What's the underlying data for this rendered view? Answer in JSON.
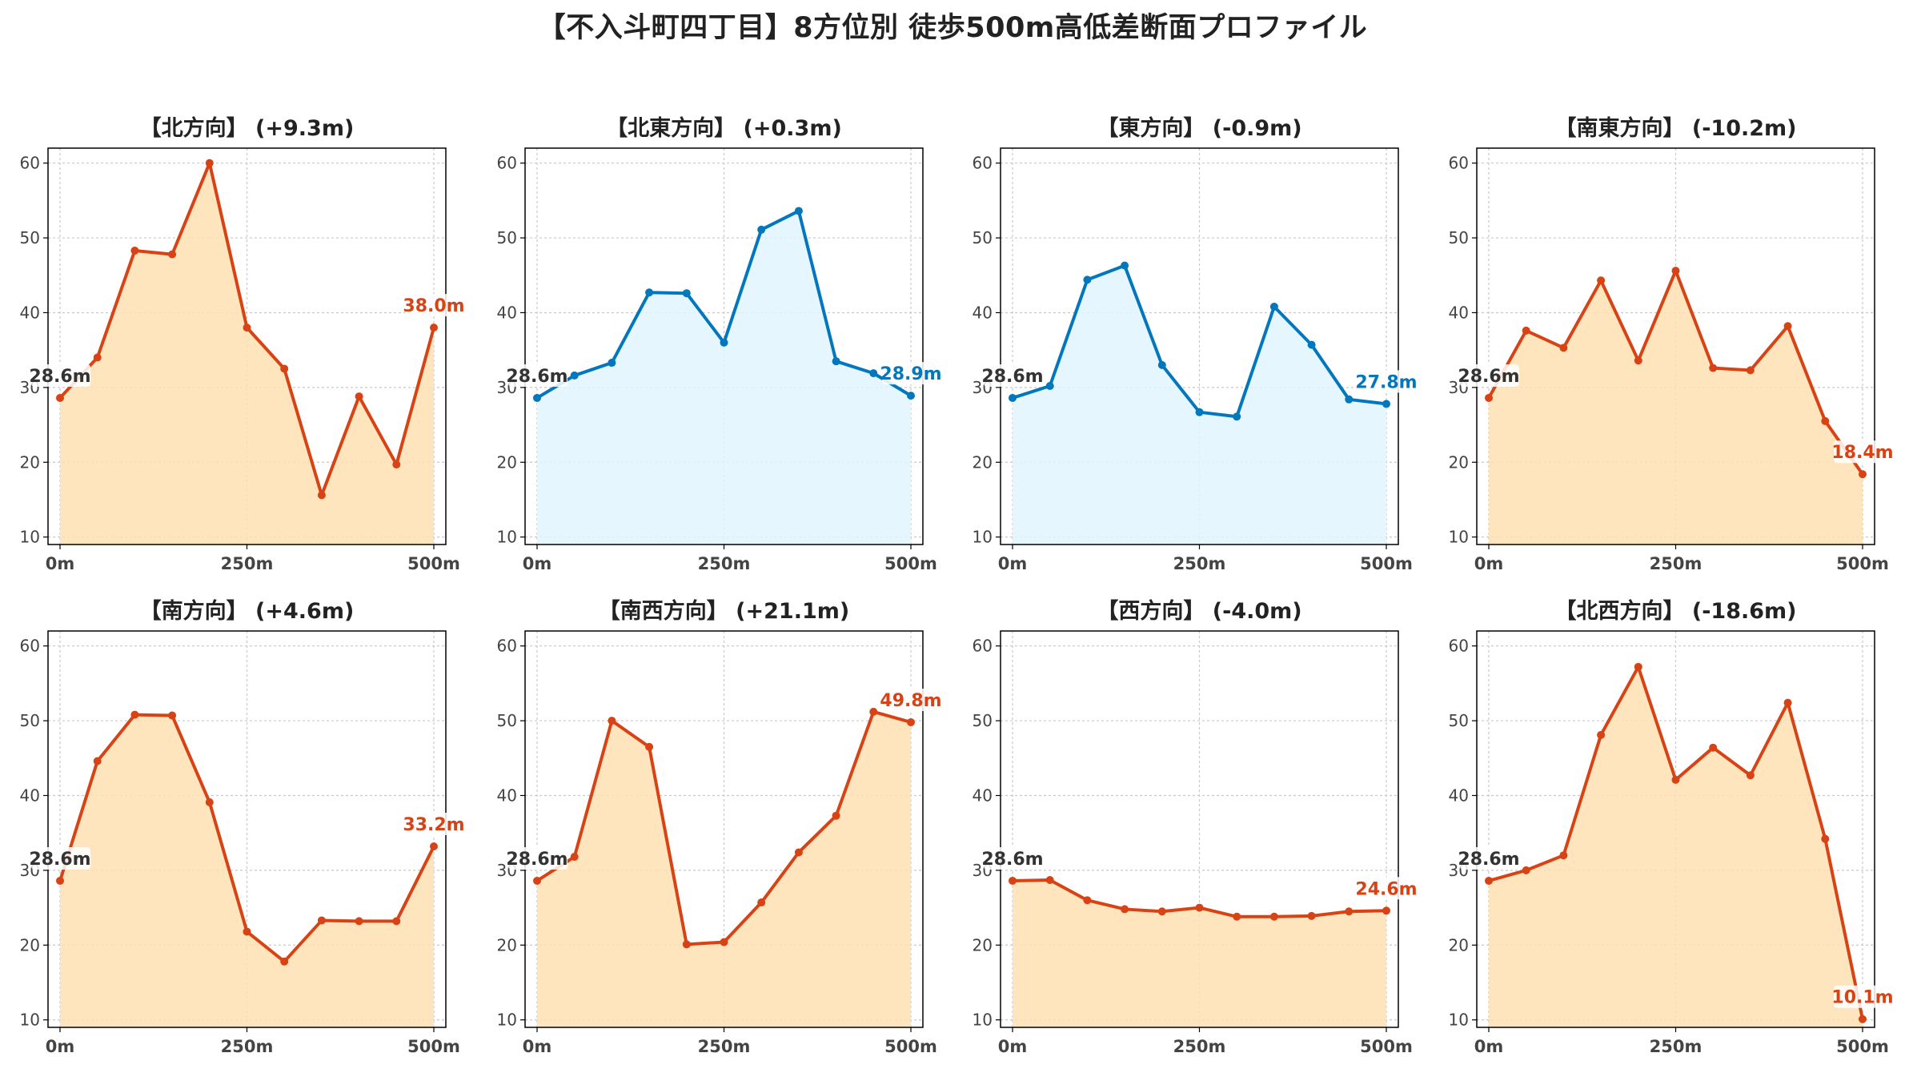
{
  "title": "【不入斗町四丁目】8方位別 徒歩500m高低差断面プロファイル",
  "colors": {
    "up_line": "#d84315",
    "up_fill": "#ffe0b2",
    "flat_line": "#0277bd",
    "flat_fill": "#e1f5fe",
    "start_label": "#333333",
    "grid": "#c8c8c8",
    "tick_text": "#444444"
  },
  "chart_data": [
    {
      "type": "area",
      "title": "【北方向】 (+9.3m)",
      "color": "up",
      "x": [
        0,
        50,
        100,
        150,
        200,
        250,
        300,
        350,
        400,
        450,
        500
      ],
      "values": [
        28.6,
        34.0,
        48.3,
        47.8,
        60.0,
        38.0,
        32.5,
        15.6,
        28.8,
        19.7,
        38.0
      ],
      "start_label": "28.6m",
      "end_label": "38.0m",
      "xticks": [
        "0m",
        "250m",
        "500m"
      ],
      "yticks": [
        "10",
        "20",
        "30",
        "40",
        "50",
        "60"
      ],
      "ylim": [
        9,
        62
      ],
      "grid": true
    },
    {
      "type": "area",
      "title": "【北東方向】 (+0.3m)",
      "color": "flat",
      "x": [
        0,
        50,
        100,
        150,
        200,
        250,
        300,
        350,
        400,
        450,
        500
      ],
      "values": [
        28.6,
        31.6,
        33.3,
        42.7,
        42.6,
        36.0,
        51.1,
        53.6,
        33.5,
        31.9,
        28.9
      ],
      "start_label": "28.6m",
      "end_label": "28.9m",
      "xticks": [
        "0m",
        "250m",
        "500m"
      ],
      "yticks": [
        "10",
        "20",
        "30",
        "40",
        "50",
        "60"
      ],
      "ylim": [
        9,
        62
      ],
      "grid": true
    },
    {
      "type": "area",
      "title": "【東方向】 (-0.9m)",
      "color": "flat",
      "x": [
        0,
        50,
        100,
        150,
        200,
        250,
        300,
        350,
        400,
        450,
        500
      ],
      "values": [
        28.6,
        30.2,
        44.4,
        46.3,
        33.0,
        26.7,
        26.1,
        40.8,
        35.7,
        28.4,
        27.8
      ],
      "start_label": "28.6m",
      "end_label": "27.8m",
      "xticks": [
        "0m",
        "250m",
        "500m"
      ],
      "yticks": [
        "10",
        "20",
        "30",
        "40",
        "50",
        "60"
      ],
      "ylim": [
        9,
        62
      ],
      "grid": true
    },
    {
      "type": "area",
      "title": "【南東方向】 (-10.2m)",
      "color": "up",
      "x": [
        0,
        50,
        100,
        150,
        200,
        250,
        300,
        350,
        400,
        450,
        500
      ],
      "values": [
        28.6,
        37.6,
        35.3,
        44.3,
        33.6,
        45.6,
        32.6,
        32.3,
        38.2,
        25.5,
        18.4
      ],
      "start_label": "28.6m",
      "end_label": "18.4m",
      "xticks": [
        "0m",
        "250m",
        "500m"
      ],
      "yticks": [
        "10",
        "20",
        "30",
        "40",
        "50",
        "60"
      ],
      "ylim": [
        9,
        62
      ],
      "grid": true
    },
    {
      "type": "area",
      "title": "【南方向】 (+4.6m)",
      "color": "up",
      "x": [
        0,
        50,
        100,
        150,
        200,
        250,
        300,
        350,
        400,
        450,
        500
      ],
      "values": [
        28.6,
        44.6,
        50.8,
        50.7,
        39.1,
        21.8,
        17.8,
        23.3,
        23.2,
        23.2,
        33.2
      ],
      "start_label": "28.6m",
      "end_label": "33.2m",
      "xticks": [
        "0m",
        "250m",
        "500m"
      ],
      "yticks": [
        "10",
        "20",
        "30",
        "40",
        "50",
        "60"
      ],
      "ylim": [
        9,
        62
      ],
      "grid": true
    },
    {
      "type": "area",
      "title": "【南西方向】 (+21.1m)",
      "color": "up",
      "x": [
        0,
        50,
        100,
        150,
        200,
        250,
        300,
        350,
        400,
        450,
        500
      ],
      "values": [
        28.6,
        31.8,
        50.0,
        46.5,
        20.1,
        20.4,
        25.7,
        32.4,
        37.3,
        51.2,
        49.8
      ],
      "start_label": "28.6m",
      "end_label": "49.8m",
      "xticks": [
        "0m",
        "250m",
        "500m"
      ],
      "yticks": [
        "10",
        "20",
        "30",
        "40",
        "50",
        "60"
      ],
      "ylim": [
        9,
        62
      ],
      "grid": true
    },
    {
      "type": "area",
      "title": "【西方向】 (-4.0m)",
      "color": "up",
      "x": [
        0,
        50,
        100,
        150,
        200,
        250,
        300,
        350,
        400,
        450,
        500
      ],
      "values": [
        28.6,
        28.7,
        26.0,
        24.8,
        24.5,
        25.0,
        23.8,
        23.8,
        23.9,
        24.5,
        24.6
      ],
      "start_label": "28.6m",
      "end_label": "24.6m",
      "xticks": [
        "0m",
        "250m",
        "500m"
      ],
      "yticks": [
        "10",
        "20",
        "30",
        "40",
        "50",
        "60"
      ],
      "ylim": [
        9,
        62
      ],
      "grid": true
    },
    {
      "type": "area",
      "title": "【北西方向】 (-18.6m)",
      "color": "up",
      "x": [
        0,
        50,
        100,
        150,
        200,
        250,
        300,
        350,
        400,
        450,
        500
      ],
      "values": [
        28.6,
        30.0,
        32.0,
        48.1,
        57.2,
        42.1,
        46.4,
        42.7,
        52.4,
        34.2,
        10.1
      ],
      "start_label": "28.6m",
      "end_label": "10.1m",
      "xticks": [
        "0m",
        "250m",
        "500m"
      ],
      "yticks": [
        "10",
        "20",
        "30",
        "40",
        "50",
        "60"
      ],
      "ylim": [
        9,
        62
      ],
      "grid": true
    }
  ]
}
